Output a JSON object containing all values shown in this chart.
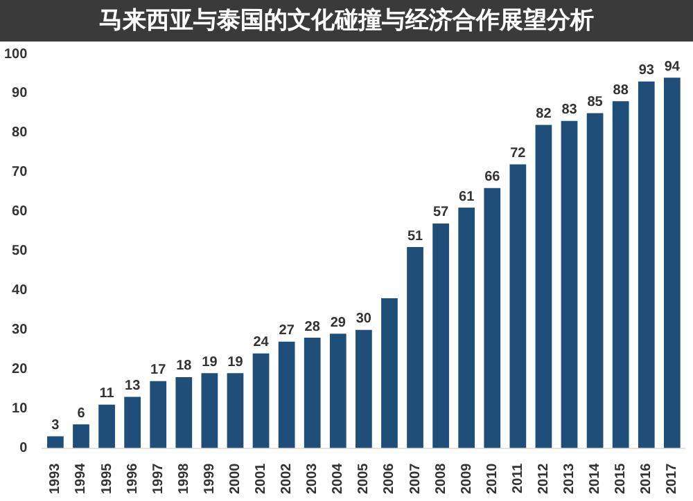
{
  "chart_data": {
    "type": "bar",
    "title": "马来西亚与泰国的文化碰撞与经济合作展望分析",
    "categories": [
      "1993",
      "1994",
      "1995",
      "1996",
      "1997",
      "1998",
      "1999",
      "2000",
      "2001",
      "2002",
      "2003",
      "2004",
      "2005",
      "2006",
      "2007",
      "2008",
      "2009",
      "2010",
      "2011",
      "2012",
      "2013",
      "2014",
      "2015",
      "2016",
      "2017"
    ],
    "values": [
      3,
      6,
      11,
      13,
      17,
      18,
      19,
      19,
      24,
      27,
      28,
      29,
      30,
      38,
      51,
      57,
      61,
      66,
      72,
      82,
      83,
      85,
      88,
      93,
      94
    ],
    "value_labels": [
      "3",
      "6",
      "11",
      "13",
      "17",
      "18",
      "19",
      "19",
      "24",
      "27",
      "28",
      "29",
      "30",
      null,
      "51",
      "57",
      "61",
      "66",
      "72",
      "82",
      "83",
      "85",
      "88",
      "93",
      "94"
    ],
    "color": "#1f4e79",
    "ylim": [
      0,
      100
    ],
    "yticks": [
      0,
      10,
      20,
      30,
      40,
      50,
      60,
      70,
      80,
      90,
      100
    ],
    "grid": false
  }
}
